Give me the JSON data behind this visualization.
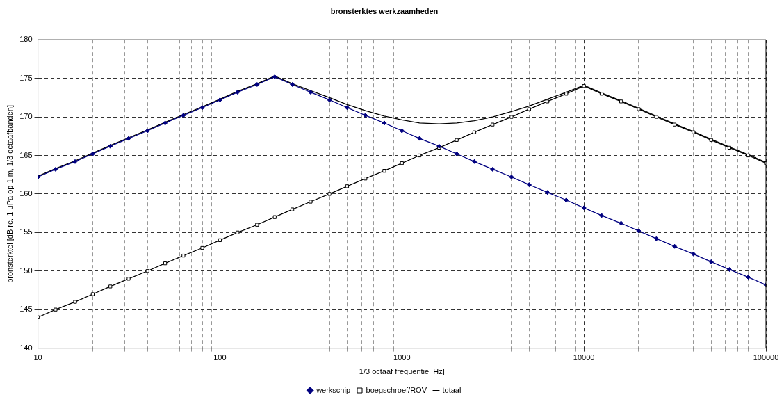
{
  "chart_data": {
    "type": "line",
    "title": "bronsterktes werkzaamheden",
    "xlabel": "1/3 octaaf frequentie [Hz]",
    "ylabel": "bronsterktel [dB re. 1 μPa op 1 m, 1/3 octaafbanden]",
    "x": [
      10,
      12.5,
      16,
      20,
      25,
      31.5,
      40,
      50,
      63,
      80,
      100,
      125,
      160,
      200,
      250,
      315,
      400,
      500,
      630,
      800,
      1000,
      1250,
      1600,
      2000,
      2500,
      3150,
      4000,
      5000,
      6300,
      8000,
      10000,
      12500,
      16000,
      20000,
      25000,
      31500,
      40000,
      50000,
      63000,
      80000,
      100000
    ],
    "series": [
      {
        "name": "werkschip",
        "color": "#000080",
        "marker": "diamond",
        "values": [
          162.2,
          163.2,
          164.2,
          165.2,
          166.2,
          167.2,
          168.2,
          169.2,
          170.2,
          171.2,
          172.2,
          173.2,
          174.2,
          175.2,
          174.2,
          173.2,
          172.2,
          171.2,
          170.2,
          169.2,
          168.2,
          167.2,
          166.2,
          165.2,
          164.2,
          163.2,
          162.2,
          161.2,
          160.2,
          159.2,
          158.2,
          157.2,
          156.2,
          155.2,
          154.2,
          153.2,
          152.2,
          151.2,
          150.2,
          149.2,
          148.2
        ]
      },
      {
        "name": "boegschroef/ROV",
        "color": "#000000",
        "marker": "square",
        "values": [
          144,
          145,
          146,
          147,
          148,
          149,
          150,
          151,
          152,
          153,
          154,
          155,
          156,
          157,
          158,
          159,
          160,
          161,
          162,
          163,
          164,
          165,
          166,
          167,
          168,
          169,
          170,
          171,
          172,
          173,
          174,
          173,
          172,
          171,
          170,
          169,
          168,
          167,
          166,
          165,
          164
        ]
      },
      {
        "name": "totaal",
        "color": "#000000",
        "marker": "none",
        "values": [
          162.3,
          163.3,
          164.3,
          165.3,
          166.3,
          167.3,
          168.3,
          169.3,
          170.3,
          171.3,
          172.3,
          173.3,
          174.3,
          175.3,
          174.3,
          173.4,
          172.5,
          171.6,
          170.8,
          170.1,
          169.6,
          169.2,
          169.1,
          169.2,
          169.5,
          170.0,
          170.7,
          171.4,
          172.3,
          173.2,
          174.1,
          173.1,
          172.1,
          171.1,
          170.1,
          169.1,
          168.1,
          167.1,
          166.1,
          165.1,
          164.1
        ]
      }
    ],
    "log": "x",
    "xlim": [
      10,
      100000
    ],
    "xticks": [
      10,
      {
        "value": 20,
        "label": null
      },
      {
        "value": 30,
        "label": null
      },
      {
        "value": 40,
        "label": null
      },
      {
        "value": 50,
        "label": null
      },
      {
        "value": 60,
        "label": null
      },
      {
        "value": 70,
        "label": null
      },
      {
        "value": 80,
        "label": null
      },
      {
        "value": 90,
        "label": null
      },
      100,
      {
        "value": 200,
        "label": null
      },
      {
        "value": 300,
        "label": null
      },
      {
        "value": 400,
        "label": null
      },
      {
        "value": 500,
        "label": null
      },
      {
        "value": 600,
        "label": null
      },
      {
        "value": 700,
        "label": null
      },
      {
        "value": 800,
        "label": null
      },
      {
        "value": 900,
        "label": null
      },
      1000,
      {
        "value": 2000,
        "label": null
      },
      {
        "value": 3000,
        "label": null
      },
      {
        "value": 4000,
        "label": null
      },
      {
        "value": 5000,
        "label": null
      },
      {
        "value": 6000,
        "label": null
      },
      {
        "value": 7000,
        "label": null
      },
      {
        "value": 8000,
        "label": null
      },
      {
        "value": 9000,
        "label": null
      },
      10000,
      {
        "value": 20000,
        "label": null
      },
      {
        "value": 30000,
        "label": null
      },
      {
        "value": 40000,
        "label": null
      },
      {
        "value": 50000,
        "label": null
      },
      {
        "value": 60000,
        "label": null
      },
      {
        "value": 70000,
        "label": null
      },
      {
        "value": 80000,
        "label": null
      },
      {
        "value": 90000,
        "label": null
      },
      100000
    ],
    "ylim": [
      140,
      180
    ],
    "yticks": [
      140,
      145,
      150,
      155,
      160,
      165,
      170,
      175,
      180
    ],
    "grid": true,
    "legend": "bottom",
    "line_style": "solid"
  }
}
